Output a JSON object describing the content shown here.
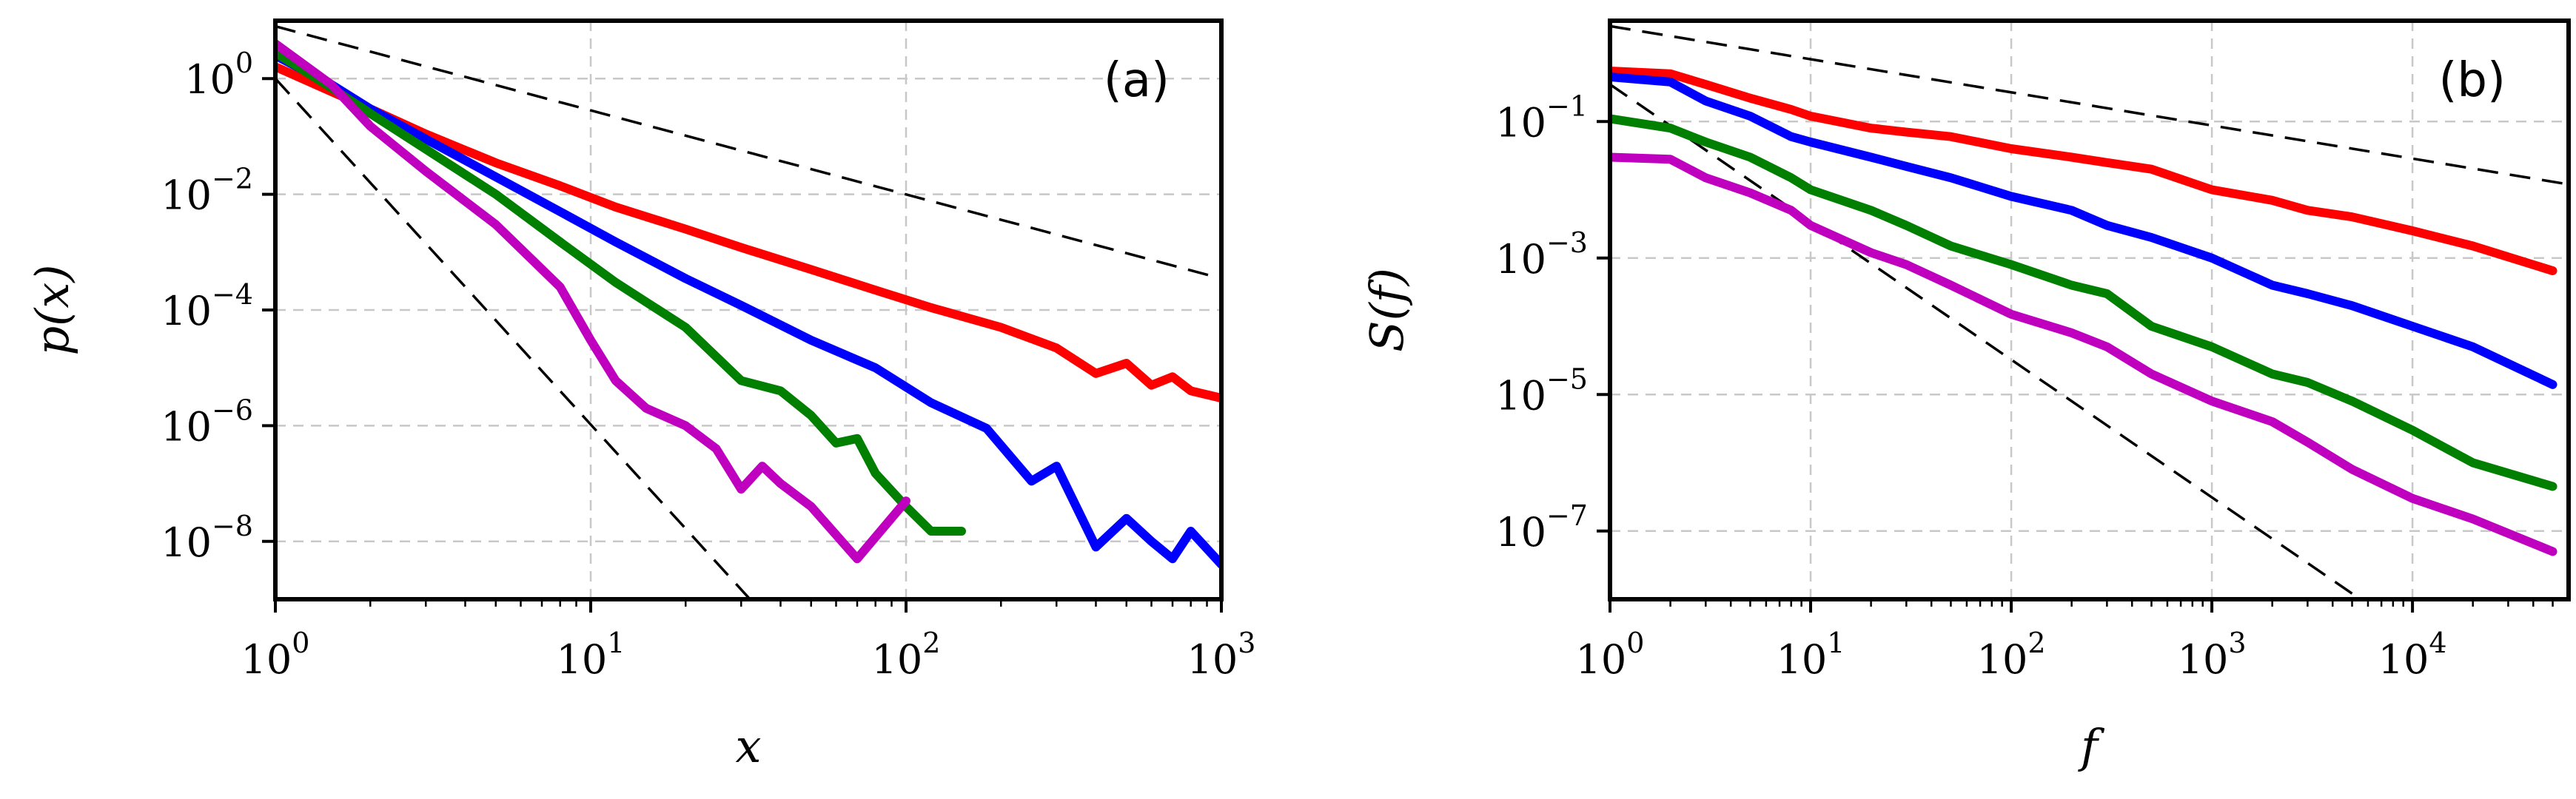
{
  "chart_data": [
    {
      "panel": "(a)",
      "type": "line",
      "xscale": "log",
      "yscale": "log",
      "xlabel": "x",
      "ylabel": "p(x)",
      "xlim": [
        1,
        1000
      ],
      "ylim": [
        1e-09,
        10
      ],
      "xticks": [
        {
          "base": "10",
          "exp": "0",
          "value": 1
        },
        {
          "base": "10",
          "exp": "1",
          "value": 10
        },
        {
          "base": "10",
          "exp": "2",
          "value": 100
        },
        {
          "base": "10",
          "exp": "3",
          "value": 1000
        }
      ],
      "yticks": [
        {
          "base": "10",
          "exp": "0",
          "value": 1
        },
        {
          "base": "10",
          "exp": "−2",
          "value": 0.01
        },
        {
          "base": "10",
          "exp": "−4",
          "value": 0.0001
        },
        {
          "base": "10",
          "exp": "−6",
          "value": 1e-06
        },
        {
          "base": "10",
          "exp": "−8",
          "value": 1e-08
        }
      ],
      "legend_position": "none",
      "grid": true,
      "reference_lines": [
        {
          "x": [
            1,
            1000
          ],
          "y": [
            8,
            0.00035
          ]
        },
        {
          "x": [
            1,
            32
          ],
          "y": [
            1,
            1e-09
          ]
        }
      ],
      "series": [
        {
          "name": "red",
          "color": "#ff0000",
          "x": [
            1,
            1.5,
            2,
            3,
            5,
            8,
            12,
            20,
            30,
            50,
            80,
            120,
            200,
            300,
            400,
            500,
            600,
            700,
            800,
            1000
          ],
          "y": [
            1.6,
            0.6,
            0.3,
            0.11,
            0.035,
            0.014,
            0.006,
            0.0025,
            0.0012,
            0.0005,
            0.00022,
            0.00011,
            5e-05,
            2.2e-05,
            8e-06,
            1.2e-05,
            5e-06,
            7e-06,
            4e-06,
            3e-06
          ]
        },
        {
          "name": "blue",
          "color": "#0000ff",
          "x": [
            1,
            1.5,
            2,
            3,
            5,
            8,
            12,
            20,
            30,
            50,
            80,
            120,
            180,
            250,
            300,
            400,
            500,
            600,
            700,
            800,
            1000
          ],
          "y": [
            2.5,
            0.8,
            0.3,
            0.09,
            0.02,
            0.005,
            0.0015,
            0.00035,
            0.00012,
            3e-05,
            1e-05,
            2.5e-06,
            9e-07,
            1.1e-07,
            2e-07,
            8e-09,
            2.5e-08,
            1e-08,
            5e-09,
            1.5e-08,
            4e-09
          ]
        },
        {
          "name": "green",
          "color": "#007f00",
          "x": [
            1,
            1.5,
            2,
            3,
            5,
            8,
            12,
            20,
            30,
            40,
            50,
            60,
            70,
            80,
            100,
            120,
            150
          ],
          "y": [
            2.8,
            0.7,
            0.25,
            0.06,
            0.01,
            0.0015,
            0.0003,
            5e-05,
            6e-06,
            4e-06,
            1.5e-06,
            5e-07,
            6e-07,
            1.5e-07,
            4e-08,
            1.5e-08,
            1.5e-08
          ]
        },
        {
          "name": "magenta",
          "color": "#bf00bf",
          "x": [
            1,
            1.5,
            2,
            3,
            5,
            8,
            10,
            12,
            15,
            20,
            25,
            30,
            35,
            40,
            50,
            70,
            100
          ],
          "y": [
            4,
            0.8,
            0.15,
            0.025,
            0.003,
            0.00025,
            3e-05,
            6e-06,
            2e-06,
            1e-06,
            4e-07,
            8e-08,
            2e-07,
            1e-07,
            4e-08,
            5e-09,
            5e-08
          ]
        }
      ]
    },
    {
      "panel": "(b)",
      "type": "line",
      "xscale": "log",
      "yscale": "log",
      "xlabel": "f",
      "ylabel": "S(f)",
      "xlim": [
        1,
        60000
      ],
      "ylim": [
        1e-08,
        3
      ],
      "xticks": [
        {
          "base": "10",
          "exp": "0",
          "value": 1
        },
        {
          "base": "10",
          "exp": "1",
          "value": 10
        },
        {
          "base": "10",
          "exp": "2",
          "value": 100
        },
        {
          "base": "10",
          "exp": "3",
          "value": 1000
        },
        {
          "base": "10",
          "exp": "4",
          "value": 10000
        }
      ],
      "yticks": [
        {
          "base": "10",
          "exp": "−1",
          "value": 0.1
        },
        {
          "base": "10",
          "exp": "−3",
          "value": 0.001
        },
        {
          "base": "10",
          "exp": "−5",
          "value": 1e-05
        },
        {
          "base": "10",
          "exp": "−7",
          "value": 1e-07
        }
      ],
      "legend_position": "none",
      "grid": true,
      "reference_lines": [
        {
          "x": [
            1,
            60000
          ],
          "y": [
            2.5,
            0.012
          ]
        },
        {
          "x": [
            1,
            5500
          ],
          "y": [
            0.35,
            1e-08
          ]
        }
      ],
      "series": [
        {
          "name": "red",
          "color": "#ff0000",
          "x": [
            1,
            2,
            3,
            5,
            8,
            10,
            20,
            30,
            50,
            100,
            200,
            300,
            500,
            1000,
            2000,
            3000,
            5000,
            10000,
            20000,
            50000
          ],
          "y": [
            0.55,
            0.5,
            0.35,
            0.22,
            0.15,
            0.12,
            0.08,
            0.07,
            0.06,
            0.04,
            0.03,
            0.025,
            0.02,
            0.01,
            0.007,
            0.005,
            0.004,
            0.0025,
            0.0015,
            0.00065
          ]
        },
        {
          "name": "blue",
          "color": "#0000ff",
          "x": [
            1,
            2,
            3,
            5,
            8,
            10,
            20,
            30,
            50,
            100,
            200,
            300,
            500,
            1000,
            2000,
            3000,
            5000,
            10000,
            20000,
            50000
          ],
          "y": [
            0.45,
            0.38,
            0.2,
            0.12,
            0.06,
            0.05,
            0.03,
            0.022,
            0.015,
            0.008,
            0.005,
            0.003,
            0.002,
            0.001,
            0.0004,
            0.0003,
            0.0002,
            0.0001,
            5e-05,
            1.4e-05
          ]
        },
        {
          "name": "green",
          "color": "#007f00",
          "x": [
            1,
            2,
            3,
            5,
            8,
            10,
            20,
            30,
            50,
            100,
            200,
            300,
            500,
            1000,
            2000,
            3000,
            5000,
            10000,
            20000,
            50000
          ],
          "y": [
            0.11,
            0.08,
            0.05,
            0.03,
            0.015,
            0.01,
            0.005,
            0.003,
            0.0015,
            0.0008,
            0.0004,
            0.0003,
            0.0001,
            5e-05,
            2e-05,
            1.5e-05,
            8e-06,
            3e-06,
            1e-06,
            4.5e-07
          ]
        },
        {
          "name": "magenta",
          "color": "#bf00bf",
          "x": [
            1,
            2,
            3,
            5,
            8,
            10,
            20,
            30,
            50,
            100,
            200,
            300,
            500,
            1000,
            2000,
            3000,
            5000,
            10000,
            20000,
            50000
          ],
          "y": [
            0.03,
            0.028,
            0.015,
            0.009,
            0.005,
            0.003,
            0.0012,
            0.0008,
            0.0004,
            0.00015,
            8e-05,
            5e-05,
            2e-05,
            8e-06,
            4e-06,
            2e-06,
            8e-07,
            3e-07,
            1.5e-07,
            5e-08
          ]
        }
      ]
    }
  ]
}
